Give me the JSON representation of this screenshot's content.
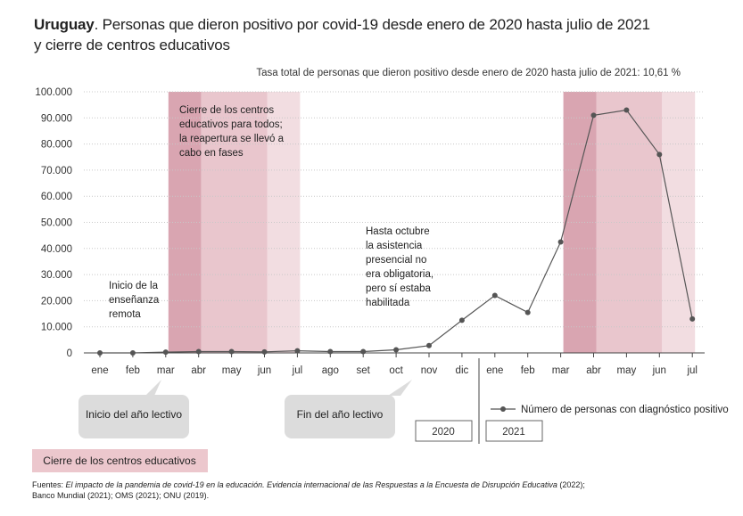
{
  "header": {
    "title_bold": "Uruguay",
    "title_rest": ". Personas que dieron positivo por covid-19 desde enero de 2020 hasta julio de 2021",
    "title_line2": "y cierre de centros educativos",
    "subtitle": "Tasa total de personas que dieron positivo desde enero de 2020 hasta julio de 2021: 10,61 %"
  },
  "annotations": {
    "closure": [
      "Cierre de los centros",
      "educativos para todos;",
      "la reapertura se llevó a",
      "cabo en fases"
    ],
    "remote": [
      "Inicio de la",
      "enseñanza",
      "remota"
    ],
    "october": [
      "Hasta octubre",
      "la asistencia",
      "presencial no",
      "era obligatoria,",
      "pero sí estaba",
      "habilitada"
    ]
  },
  "callouts": {
    "start": "Inicio del año lectivo",
    "end": "Fin del año lectivo"
  },
  "years": [
    "2020",
    "2021"
  ],
  "legend": {
    "series": "Número de personas con diagnóstico positivo",
    "closure": "Cierre de los centros educativos"
  },
  "sources": {
    "prefix": "Fuentes: ",
    "italic": "El impacto de la pandemia de covid-19 en la educación. Evidencia internacional de las Respuestas a la Encuesta de Disrupción Educativa",
    "rest": " (2022);",
    "line2": "Banco Mundial (2021); OMS (2021); ONU (2019)."
  },
  "colors": {
    "line": "#555555",
    "closure_dark": "#d9a5b1",
    "closure_mid": "#e9c6cd",
    "closure_light": "#f2dde1",
    "callout_bg": "#dcdcdc",
    "legend_bg": "#ecc7cd"
  },
  "chart_data": {
    "type": "line",
    "categories": [
      "ene",
      "feb",
      "mar",
      "abr",
      "may",
      "jun",
      "jul",
      "ago",
      "set",
      "oct",
      "nov",
      "dic",
      "ene",
      "feb",
      "mar",
      "abr",
      "may",
      "jun",
      "jul"
    ],
    "series": [
      {
        "name": "Número de personas con diagnóstico positivo",
        "values": [
          0,
          0,
          300,
          500,
          500,
          400,
          800,
          500,
          500,
          1200,
          2800,
          12500,
          22000,
          15500,
          42500,
          91000,
          93000,
          76000,
          13000
        ]
      }
    ],
    "yticks": [
      "100.000",
      "90.000",
      "80.000",
      "70.000",
      "60.000",
      "50.000",
      "40.000",
      "30.000",
      "20.000",
      "10.000",
      "0"
    ],
    "ylim": [
      0,
      100000
    ],
    "grid": true,
    "closure_bands": [
      {
        "from": "mar",
        "to": "abr",
        "year": "2020",
        "shade": "dark"
      },
      {
        "from": "abr",
        "to": "jun",
        "year": "2020",
        "shade": "mid"
      },
      {
        "from": "jun",
        "to": "jul",
        "year": "2020",
        "shade": "light"
      },
      {
        "from": "mar",
        "to": "abr",
        "year": "2021",
        "shade": "dark"
      },
      {
        "from": "abr",
        "to": "jun",
        "year": "2021",
        "shade": "mid"
      },
      {
        "from": "jun",
        "to": "jul",
        "year": "2021",
        "shade": "light"
      }
    ]
  }
}
